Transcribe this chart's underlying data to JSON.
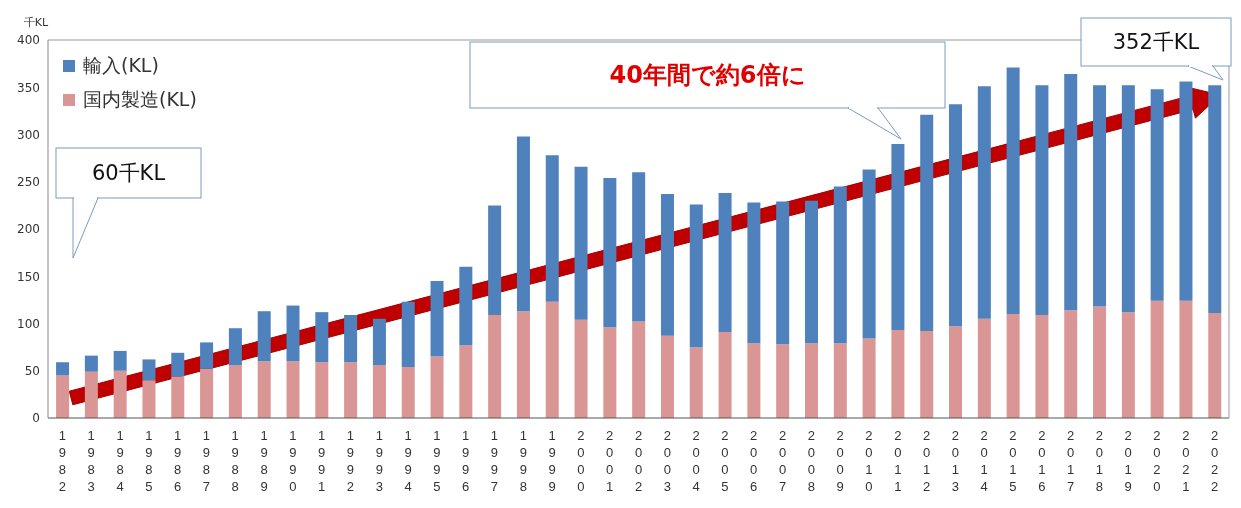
{
  "chart_data": {
    "type": "bar",
    "stacked": true,
    "ylabel": "千KL",
    "categories": [
      "1982",
      "1983",
      "1984",
      "1985",
      "1986",
      "1987",
      "1988",
      "1989",
      "1990",
      "1991",
      "1992",
      "1993",
      "1994",
      "1995",
      "1996",
      "1997",
      "1998",
      "1999",
      "2000",
      "2001",
      "2002",
      "2003",
      "2004",
      "2005",
      "2006",
      "2007",
      "2008",
      "2009",
      "2010",
      "2011",
      "2012",
      "2013",
      "2014",
      "2015",
      "2016",
      "2017",
      "2018",
      "2019",
      "2020",
      "2021",
      "2022"
    ],
    "series": [
      {
        "name": "国内製造(KL)",
        "color": "#d99694",
        "values": [
          45,
          49,
          50,
          40,
          44,
          52,
          56,
          60,
          60,
          59,
          59,
          56,
          54,
          65,
          77,
          109,
          113,
          123,
          104,
          96,
          102,
          87,
          75,
          91,
          79,
          78,
          79,
          79,
          84,
          93,
          92,
          97,
          105,
          110,
          109,
          114,
          118,
          112,
          124,
          124,
          111
        ]
      },
      {
        "name": "輸入(KL)",
        "color": "#4f81bd",
        "values": [
          14,
          17,
          21,
          22,
          25,
          28,
          39,
          53,
          59,
          53,
          50,
          49,
          69,
          80,
          83,
          116,
          185,
          155,
          162,
          158,
          158,
          150,
          151,
          147,
          149,
          151,
          151,
          166,
          179,
          197,
          229,
          235,
          246,
          261,
          243,
          250,
          234,
          240,
          224,
          232,
          241
        ]
      }
    ],
    "ylim": [
      0,
      400
    ],
    "yticks": [
      0,
      50,
      100,
      150,
      200,
      250,
      300,
      350,
      400
    ],
    "legend": "top left",
    "annotations": [
      "60千KL",
      "40年間で約6倍に",
      "352千KL"
    ]
  }
}
